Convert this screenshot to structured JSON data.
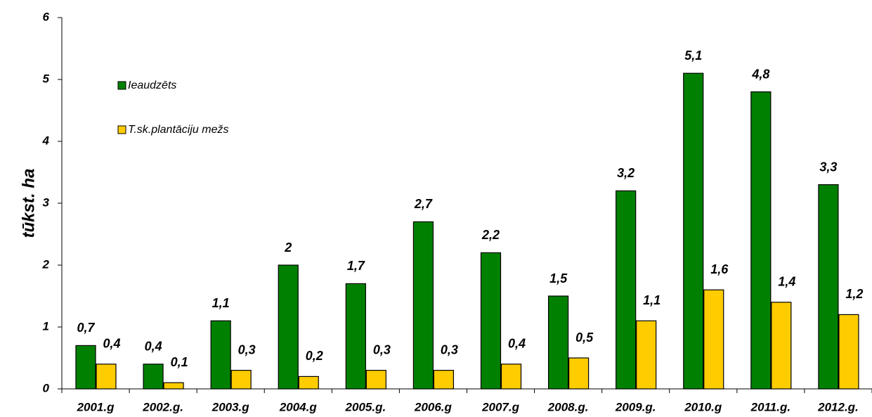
{
  "chart_data": {
    "type": "bar",
    "y_label": "tūkst. ha",
    "categories": [
      "2001.g",
      "2002.g.",
      "2003.g",
      "2004.g",
      "2005.g.",
      "2006.g",
      "2007.g",
      "2008.g.",
      "2009.g.",
      "2010.g",
      "2011.g.",
      "2012.g."
    ],
    "series": [
      {
        "name": "Ieaudzēts",
        "color": "#008000",
        "values": [
          0.7,
          0.4,
          1.1,
          2,
          1.7,
          2.7,
          2.2,
          1.5,
          3.2,
          5.1,
          4.8,
          3.3
        ],
        "value_labels": [
          "0,7",
          "0,4",
          "1,1",
          "2",
          "1,7",
          "2,7",
          "2,2",
          "1,5",
          "3,2",
          "5,1",
          "4,8",
          "3,3"
        ]
      },
      {
        "name": "T.sk.plantāciju mežs",
        "color": "#ffcc00",
        "values": [
          0.4,
          0.1,
          0.3,
          0.2,
          0.3,
          0.3,
          0.4,
          0.5,
          1.1,
          1.6,
          1.4,
          1.2
        ],
        "value_labels": [
          "0,4",
          "0,1",
          "0,3",
          "0,2",
          "0,3",
          "0,3",
          "0,4",
          "0,5",
          "1,1",
          "1,6",
          "1,4",
          "1,2"
        ]
      }
    ],
    "ylim": [
      0,
      6
    ],
    "yticks": [
      0,
      1,
      2,
      3,
      4,
      5,
      6
    ],
    "grid": false
  }
}
